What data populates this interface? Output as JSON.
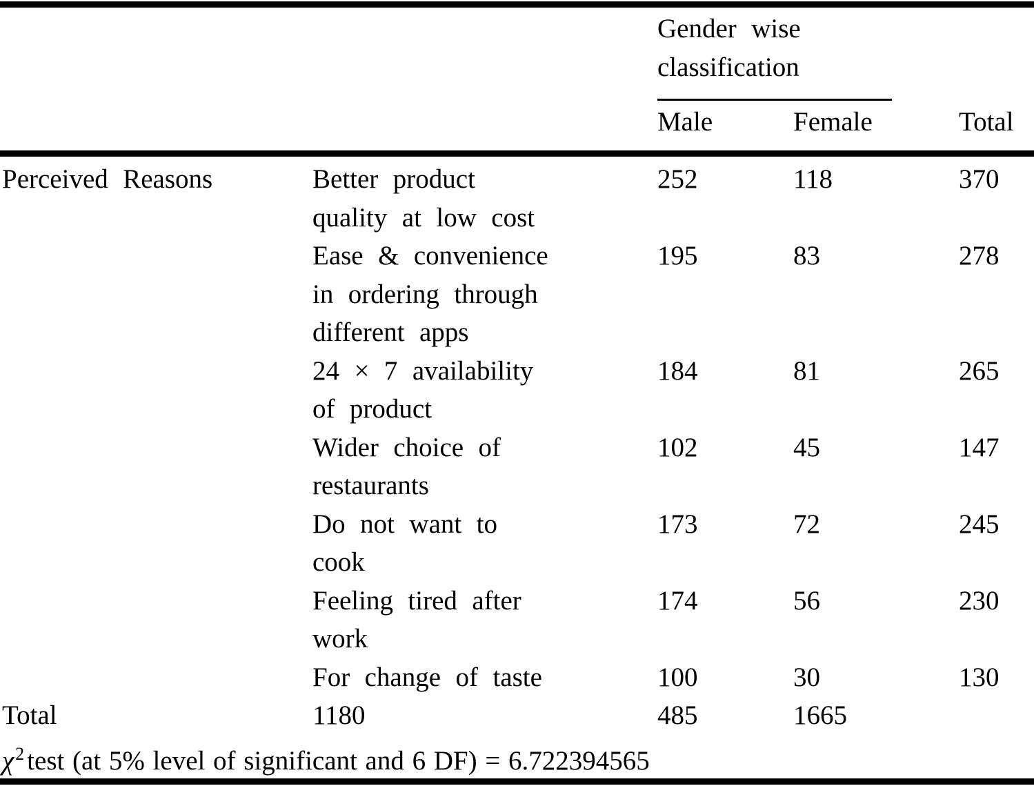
{
  "table": {
    "group_header": {
      "line1": "Gender wise",
      "line2": "classification"
    },
    "columns": {
      "male": "Male",
      "female": "Female",
      "total": "Total"
    },
    "row_group_label": "Perceived Reasons",
    "rows": [
      {
        "reason_lines": [
          "Better product",
          "quality at low cost"
        ],
        "male": "252",
        "female": "118",
        "total": "370"
      },
      {
        "reason_lines": [
          "Ease & convenience",
          "in ordering through",
          "different apps"
        ],
        "male": "195",
        "female": "83",
        "total": "278"
      },
      {
        "reason_lines": [
          "24 × 7 availability",
          "of product"
        ],
        "male": "184",
        "female": "81",
        "total": "265"
      },
      {
        "reason_lines": [
          "Wider choice of",
          "restaurants"
        ],
        "male": "102",
        "female": "45",
        "total": "147"
      },
      {
        "reason_lines": [
          "Do not want to",
          "cook"
        ],
        "male": "173",
        "female": "72",
        "total": "245"
      },
      {
        "reason_lines": [
          "Feeling tired after",
          "work"
        ],
        "male": "174",
        "female": "56",
        "total": "230"
      },
      {
        "reason_lines": [
          "For change of taste"
        ],
        "male": "100",
        "female": "30",
        "total": "130"
      }
    ],
    "total_row": {
      "label": "Total",
      "col2": "1180",
      "col3": "485",
      "col4": "1665"
    },
    "chi_note": {
      "symbol": "χ",
      "superscript": "2",
      "text": "test (at 5% level of significant and 6 DF) = 6.722394565"
    },
    "ink_color": "#000000",
    "background_color": "#ffffff"
  },
  "chart_data": {
    "type": "table",
    "title": "Gender wise classification",
    "row_group": "Perceived Reasons",
    "columns": [
      "Male",
      "Female",
      "Total"
    ],
    "categories": [
      "Better product quality at low cost",
      "Ease & convenience in ordering through different apps",
      "24 × 7 availability of product",
      "Wider choice of restaurants",
      "Do not want to cook",
      "Feeling tired after work",
      "For change of taste"
    ],
    "series": [
      {
        "name": "Male",
        "values": [
          252,
          195,
          184,
          102,
          173,
          174,
          100
        ]
      },
      {
        "name": "Female",
        "values": [
          118,
          83,
          81,
          45,
          72,
          56,
          30
        ]
      },
      {
        "name": "Total",
        "values": [
          370,
          278,
          265,
          147,
          245,
          230,
          130
        ]
      }
    ],
    "totals_row": [
      1180,
      485,
      1665
    ],
    "chi_square_note": "χ2 test (at 5% level of significant and 6 DF) = 6.722394565"
  }
}
